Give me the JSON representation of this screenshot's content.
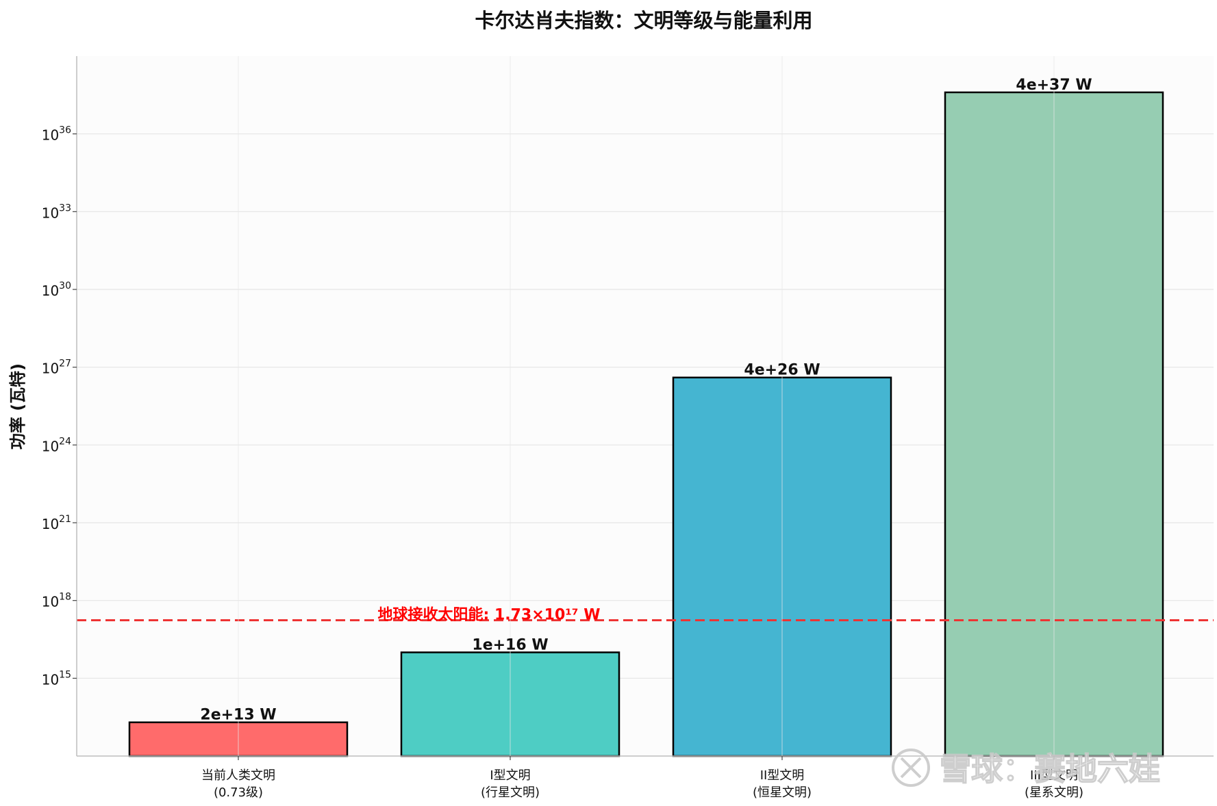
{
  "chart_data": {
    "type": "bar",
    "title": "卡尔达肖夫指数：文明等级与能量利用",
    "ylabel": "功率 (瓦特)",
    "xlabel": "",
    "yscale": "log",
    "ylim": [
      1000000000000.0,
      1e+39
    ],
    "grid": true,
    "categories": [
      [
        "当前人类文明",
        "(0.73级)"
      ],
      [
        "I型文明",
        "(行星文明)"
      ],
      [
        "II型文明",
        "(恒星文明)"
      ],
      [
        "III型文明",
        "(星系文明)"
      ]
    ],
    "values": [
      20000000000000.0,
      1e+16,
      4e+26,
      4e+37
    ],
    "value_labels": [
      "2e+13 W",
      "1e+16 W",
      "4e+26 W",
      "4e+37 W"
    ],
    "colors": [
      "#ff6b6b",
      "#4ecdc4",
      "#45b5d1",
      "#96cdb2"
    ],
    "yticks": [
      {
        "base": "10",
        "exp": "15",
        "value": 1000000000000000.0
      },
      {
        "base": "10",
        "exp": "18",
        "value": 1e+18
      },
      {
        "base": "10",
        "exp": "21",
        "value": 1e+21
      },
      {
        "base": "10",
        "exp": "24",
        "value": 1e+24
      },
      {
        "base": "10",
        "exp": "27",
        "value": 1e+27
      },
      {
        "base": "10",
        "exp": "30",
        "value": 1e+30
      },
      {
        "base": "10",
        "exp": "33",
        "value": 1e+33
      },
      {
        "base": "10",
        "exp": "36",
        "value": 1e+36
      }
    ],
    "reference_line": {
      "value": 1.73e+17,
      "label": "地球接收太阳能: 1.73×10¹⁷ W",
      "color": "#ee3333"
    }
  },
  "watermark": "雪球：赛地六娃"
}
